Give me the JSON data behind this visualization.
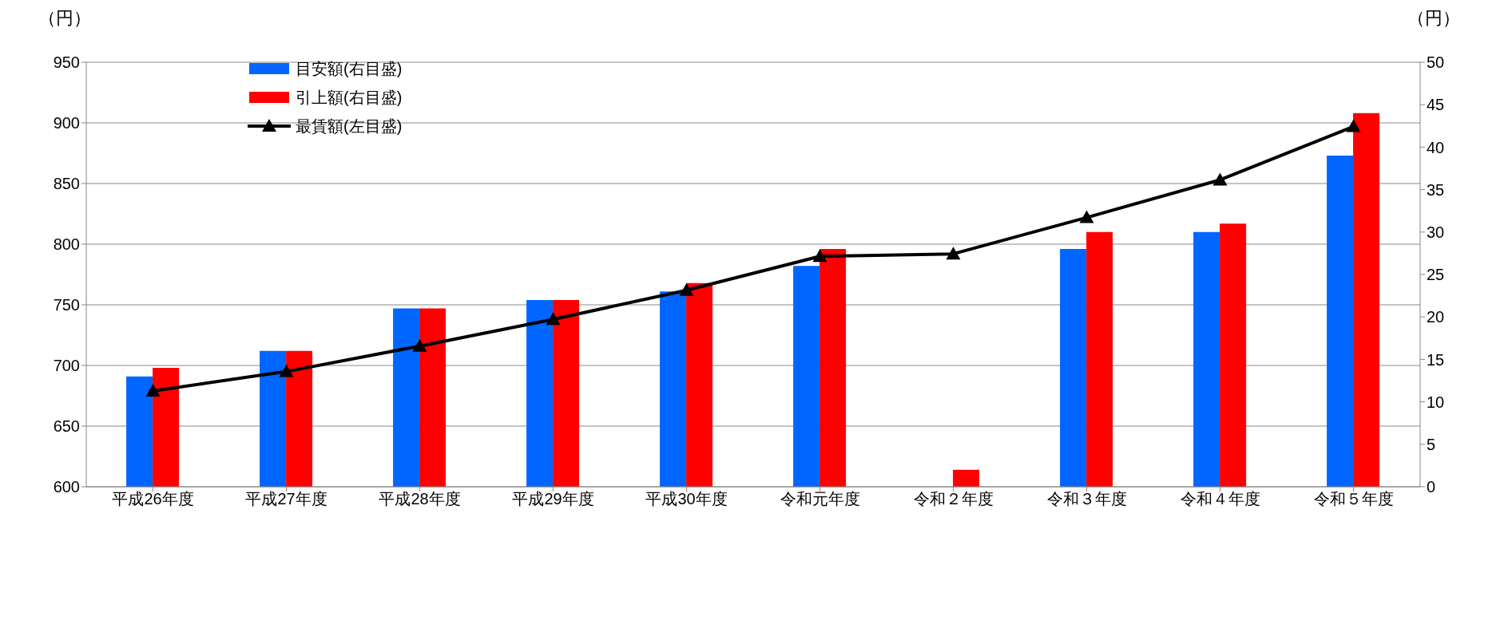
{
  "chart_data": {
    "type": "bar",
    "ylabel": "（円）",
    "y2label": "（円）",
    "categories": [
      "平成26年度",
      "平成27年度",
      "平成28年度",
      "平成29年度",
      "平成30年度",
      "令和元年度",
      "令和２年度",
      "令和３年度",
      "令和４年度",
      "令和５年度"
    ],
    "series": [
      {
        "name": "目安額(右目盛)",
        "axis": "y2",
        "color": "#0066ff",
        "values": [
          13,
          16,
          21,
          22,
          23,
          26,
          null,
          28,
          30,
          39
        ]
      },
      {
        "name": "引上額(右目盛)",
        "axis": "y2",
        "color": "#ff0000",
        "values": [
          14,
          16,
          21,
          22,
          24,
          28,
          2,
          30,
          31,
          44
        ]
      },
      {
        "name": "最賃額(左目盛)",
        "type": "line",
        "axis": "y",
        "color": "#000000",
        "marker": "triangle",
        "values": [
          679,
          695,
          716,
          738,
          762,
          790,
          792,
          822,
          853,
          897
        ]
      }
    ],
    "ylim": [
      600,
      950
    ],
    "yticks": [
      600,
      650,
      700,
      750,
      800,
      850,
      900,
      950
    ],
    "y2lim": [
      0,
      50
    ],
    "y2ticks": [
      0,
      5,
      10,
      15,
      20,
      25,
      30,
      35,
      40,
      45,
      50
    ],
    "grid": "y",
    "legend": "top left"
  }
}
